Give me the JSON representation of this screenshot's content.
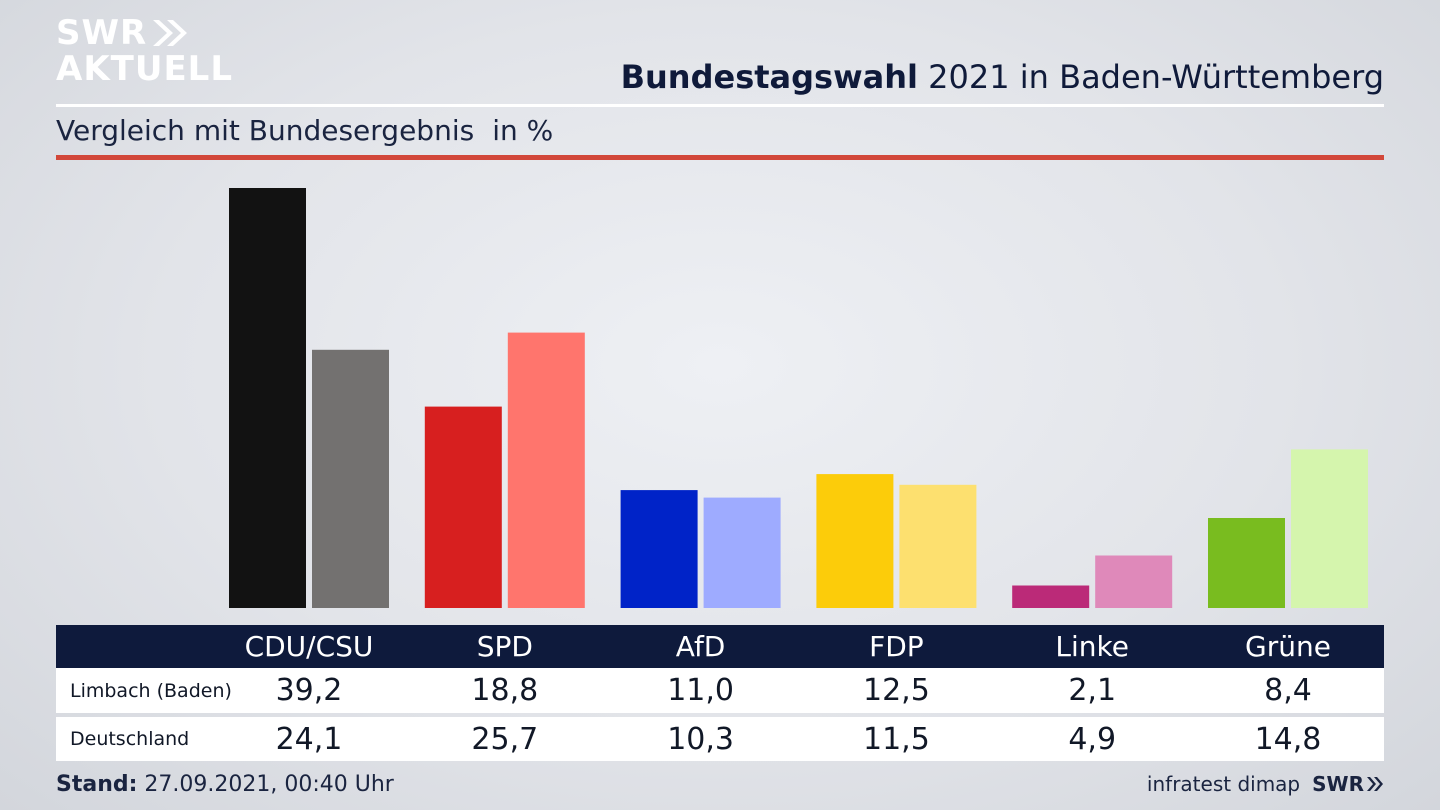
{
  "logo": {
    "line1": "SWR",
    "line2": "AKTUELL"
  },
  "header": {
    "title_bold": "Bundestagswahl",
    "title_rest": " 2021 in Baden-Württemberg"
  },
  "subtitle": {
    "text": "Vergleich mit Bundesergebnis",
    "unit": "in %"
  },
  "footer": {
    "stand_label": "Stand:",
    "stand_value": " 27.09.2021, 00:40 Uhr",
    "source": "infratest dimap",
    "brand": "SWR"
  },
  "chart_data": {
    "type": "bar",
    "title": "Bundestagswahl 2021 in Baden-Württemberg",
    "subtitle": "Vergleich mit Bundesergebnis in %",
    "categories": [
      "CDU/CSU",
      "SPD",
      "AfD",
      "FDP",
      "Linke",
      "Grüne"
    ],
    "series": [
      {
        "name": "Limbach (Baden)",
        "values": [
          39.2,
          18.8,
          11.0,
          12.5,
          2.1,
          8.4
        ],
        "colors": [
          "#121212",
          "#d71f1f",
          "#0023c8",
          "#fccc0a",
          "#bb2a78",
          "#79bc1f"
        ]
      },
      {
        "name": "Deutschland",
        "values": [
          24.1,
          25.7,
          10.3,
          11.5,
          4.9,
          14.8
        ],
        "colors": [
          "#737170",
          "#ff756d",
          "#9eabff",
          "#fde06f",
          "#df89ba",
          "#d5f5ad"
        ]
      }
    ],
    "value_labels": {
      "Limbach (Baden)": [
        "39,2",
        "18,8",
        "11,0",
        "12,5",
        "2,1",
        "8,4"
      ],
      "Deutschland": [
        "24,1",
        "25,7",
        "10,3",
        "11,5",
        "4,9",
        "14,8"
      ]
    },
    "ylim": [
      0,
      39.2
    ],
    "grid": false,
    "legend": "table-below"
  }
}
